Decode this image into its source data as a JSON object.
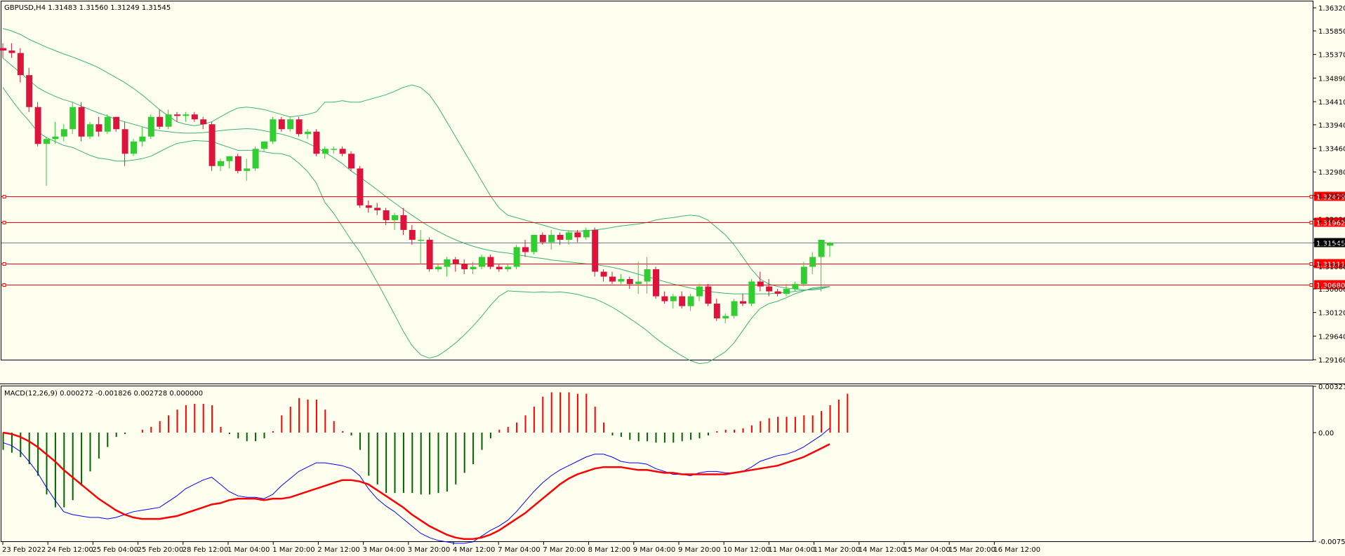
{
  "header": {
    "symbol_line": "GBPUSD,H4  1.31483 1.31560 1.31249 1.31545",
    "macd_line": "MACD(12,26,9) 0.000272 -0.001826 0.002728 0.000000"
  },
  "colors": {
    "background": "#fffff0",
    "bull": "#32cd32",
    "bear": "#dc143c",
    "bands": "#3cb371",
    "hline": "#ff0000",
    "current": "#708090",
    "macd_main": "#0000ff",
    "macd_signal": "#ff0000",
    "hist_pos": "#ff0000",
    "hist_neg": "#006400"
  },
  "chart_data": [
    {
      "type": "candlestick",
      "symbol": "GBPUSD",
      "timeframe": "H4",
      "ylim": [
        1.2916,
        1.3645
      ],
      "y_ticks": [
        "1.36320",
        "1.35850",
        "1.35370",
        "1.34890",
        "1.34410",
        "1.33940",
        "1.33460",
        "1.32980",
        "1.32500",
        "1.32020",
        "1.31540",
        "1.31060",
        "1.30600",
        "1.30120",
        "1.29640",
        "1.29160"
      ],
      "x_ticks": [
        "23 Feb 2022",
        "24 Feb 12:00",
        "25 Feb 04:00",
        "25 Feb 20:00",
        "28 Feb 12:00",
        "1 Mar 04:00",
        "1 Mar 20:00",
        "2 Mar 12:00",
        "3 Mar 04:00",
        "3 Mar 20:00",
        "4 Mar 12:00",
        "7 Mar 04:00",
        "7 Mar 20:00",
        "8 Mar 12:00",
        "9 Mar 04:00",
        "9 Mar 20:00",
        "10 Mar 12:00",
        "11 Mar 04:00",
        "11 Mar 20:00",
        "14 Mar 12:00",
        "15 Mar 04:00",
        "15 Mar 20:00",
        "16 Mar 12:00"
      ],
      "candles": [
        [
          1.355,
          1.356,
          1.353,
          1.3545
        ],
        [
          1.3545,
          1.356,
          1.353,
          1.354
        ],
        [
          1.354,
          1.355,
          1.348,
          1.3495
        ],
        [
          1.3495,
          1.351,
          1.342,
          1.343
        ],
        [
          1.343,
          1.344,
          1.335,
          1.3355
        ],
        [
          1.3355,
          1.337,
          1.327,
          1.3365
        ],
        [
          1.3365,
          1.34,
          1.3355,
          1.337
        ],
        [
          1.337,
          1.3395,
          1.336,
          1.3385
        ],
        [
          1.3385,
          1.344,
          1.3375,
          1.343
        ],
        [
          1.343,
          1.344,
          1.336,
          1.337
        ],
        [
          1.337,
          1.34,
          1.3365,
          1.3395
        ],
        [
          1.3395,
          1.341,
          1.337,
          1.338
        ],
        [
          1.338,
          1.3415,
          1.3375,
          1.341
        ],
        [
          1.341,
          1.341,
          1.338,
          1.3385
        ],
        [
          1.3385,
          1.34,
          1.331,
          1.3335
        ],
        [
          1.3335,
          1.3365,
          1.333,
          1.336
        ],
        [
          1.336,
          1.339,
          1.335,
          1.337
        ],
        [
          1.337,
          1.3415,
          1.3365,
          1.341
        ],
        [
          1.341,
          1.3425,
          1.3385,
          1.339
        ],
        [
          1.339,
          1.3425,
          1.3385,
          1.3415
        ],
        [
          1.3415,
          1.342,
          1.34,
          1.3412
        ],
        [
          1.3412,
          1.342,
          1.34,
          1.3415
        ],
        [
          1.3415,
          1.342,
          1.34,
          1.3405
        ],
        [
          1.3405,
          1.341,
          1.3385,
          1.3395
        ],
        [
          1.3395,
          1.34,
          1.33,
          1.331
        ],
        [
          1.331,
          1.3325,
          1.33,
          1.332
        ],
        [
          1.332,
          1.333,
          1.3305,
          1.333
        ],
        [
          1.333,
          1.3335,
          1.3295,
          1.33
        ],
        [
          1.33,
          1.3325,
          1.328,
          1.3305
        ],
        [
          1.3305,
          1.335,
          1.33,
          1.3345
        ],
        [
          1.3345,
          1.336,
          1.334,
          1.336
        ],
        [
          1.336,
          1.341,
          1.3355,
          1.3405
        ],
        [
          1.3405,
          1.341,
          1.338,
          1.3385
        ],
        [
          1.3385,
          1.341,
          1.338,
          1.3405
        ],
        [
          1.3405,
          1.341,
          1.337,
          1.3375
        ],
        [
          1.3375,
          1.3385,
          1.3365,
          1.338
        ],
        [
          1.338,
          1.3385,
          1.333,
          1.3335
        ],
        [
          1.3335,
          1.335,
          1.3325,
          1.3345
        ],
        [
          1.3345,
          1.335,
          1.3335,
          1.3345
        ],
        [
          1.3345,
          1.335,
          1.333,
          1.3335
        ],
        [
          1.3335,
          1.334,
          1.33,
          1.3305
        ],
        [
          1.3305,
          1.331,
          1.3225,
          1.323
        ],
        [
          1.323,
          1.324,
          1.3215,
          1.3225
        ],
        [
          1.3225,
          1.3235,
          1.321,
          1.322
        ],
        [
          1.322,
          1.3225,
          1.319,
          1.32
        ],
        [
          1.32,
          1.3215,
          1.318,
          1.321
        ],
        [
          1.321,
          1.3225,
          1.317,
          1.318
        ],
        [
          1.318,
          1.319,
          1.315,
          1.316
        ],
        [
          1.316,
          1.318,
          1.311,
          1.316
        ],
        [
          1.316,
          1.3165,
          1.3095,
          1.31
        ],
        [
          1.31,
          1.311,
          1.3095,
          1.3105
        ],
        [
          1.3105,
          1.3125,
          1.3085,
          1.312
        ],
        [
          1.312,
          1.3125,
          1.3095,
          1.311
        ],
        [
          1.311,
          1.312,
          1.309,
          1.31
        ],
        [
          1.31,
          1.3115,
          1.309,
          1.3105
        ],
        [
          1.3105,
          1.313,
          1.31,
          1.3125
        ],
        [
          1.3125,
          1.313,
          1.31,
          1.3105
        ],
        [
          1.3105,
          1.311,
          1.3095,
          1.31
        ],
        [
          1.31,
          1.311,
          1.3095,
          1.3105
        ],
        [
          1.3105,
          1.315,
          1.31,
          1.3145
        ],
        [
          1.3145,
          1.316,
          1.3125,
          1.3135
        ],
        [
          1.3135,
          1.317,
          1.313,
          1.317
        ],
        [
          1.317,
          1.3175,
          1.315,
          1.3155
        ],
        [
          1.3155,
          1.318,
          1.314,
          1.317
        ],
        [
          1.317,
          1.3175,
          1.315,
          1.316
        ],
        [
          1.316,
          1.318,
          1.315,
          1.3175
        ],
        [
          1.3175,
          1.318,
          1.3155,
          1.3165
        ],
        [
          1.3165,
          1.3185,
          1.316,
          1.318
        ],
        [
          1.318,
          1.3185,
          1.3085,
          1.3095
        ],
        [
          1.3095,
          1.31,
          1.3075,
          1.3085
        ],
        [
          1.3085,
          1.3095,
          1.307,
          1.3075
        ],
        [
          1.3075,
          1.309,
          1.307,
          1.308
        ],
        [
          1.308,
          1.3085,
          1.306,
          1.307
        ],
        [
          1.307,
          1.3115,
          1.305,
          1.3075
        ],
        [
          1.3075,
          1.3125,
          1.305,
          1.31
        ],
        [
          1.31,
          1.3105,
          1.304,
          1.3045
        ],
        [
          1.3045,
          1.3055,
          1.303,
          1.3035
        ],
        [
          1.3035,
          1.305,
          1.302,
          1.3045
        ],
        [
          1.3045,
          1.3055,
          1.302,
          1.3025
        ],
        [
          1.3025,
          1.305,
          1.3015,
          1.3045
        ],
        [
          1.3045,
          1.307,
          1.3035,
          1.3065
        ],
        [
          1.3065,
          1.307,
          1.3025,
          1.303
        ],
        [
          1.303,
          1.304,
          1.2995,
          1.3
        ],
        [
          1.3,
          1.301,
          1.299,
          1.3005
        ],
        [
          1.3005,
          1.304,
          1.3,
          1.3035
        ],
        [
          1.3035,
          1.305,
          1.3025,
          1.303
        ],
        [
          1.303,
          1.308,
          1.3025,
          1.3075
        ],
        [
          1.3075,
          1.3095,
          1.3055,
          1.3065
        ],
        [
          1.3065,
          1.308,
          1.3045,
          1.3055
        ],
        [
          1.3055,
          1.306,
          1.3045,
          1.305
        ],
        [
          1.305,
          1.307,
          1.3045,
          1.306
        ],
        [
          1.306,
          1.3075,
          1.3055,
          1.307
        ],
        [
          1.307,
          1.3115,
          1.3065,
          1.3105
        ],
        [
          1.3105,
          1.3135,
          1.309,
          1.3125
        ],
        [
          1.3125,
          1.316,
          1.3055,
          1.316
        ],
        [
          1.3148,
          1.3156,
          1.3125,
          1.3154
        ]
      ],
      "bands_upper": [
        1.359,
        1.3585,
        1.3578,
        1.3568,
        1.356,
        1.3552,
        1.3545,
        1.3538,
        1.3532,
        1.3525,
        1.3518,
        1.351,
        1.35,
        1.349,
        1.348,
        1.3468,
        1.3455,
        1.344,
        1.3425,
        1.3412,
        1.34,
        1.3395,
        1.3392,
        1.3395,
        1.34,
        1.341,
        1.342,
        1.3428,
        1.343,
        1.3428,
        1.3425,
        1.342,
        1.3415,
        1.341,
        1.3412,
        1.3415,
        1.342,
        1.344,
        1.344,
        1.3443,
        1.344,
        1.344,
        1.3445,
        1.345,
        1.3455,
        1.3462,
        1.347,
        1.3475,
        1.347,
        1.3455,
        1.343,
        1.34,
        1.337,
        1.334,
        1.331,
        1.328,
        1.325,
        1.3225,
        1.321,
        1.3205,
        1.32,
        1.3195,
        1.319,
        1.3185,
        1.318,
        1.3178,
        1.3177,
        1.3178,
        1.318,
        1.3182,
        1.3185,
        1.3188,
        1.319,
        1.3192,
        1.3195,
        1.32,
        1.3203,
        1.3205,
        1.3208,
        1.321,
        1.3208,
        1.32,
        1.3185,
        1.317,
        1.315,
        1.3125,
        1.31,
        1.308,
        1.307,
        1.3065,
        1.3062,
        1.306,
        1.3058,
        1.3058,
        1.306,
        1.3065
      ],
      "bands_middle": [
        1.353,
        1.3515,
        1.35,
        1.3485,
        1.347,
        1.346,
        1.3452,
        1.3445,
        1.344,
        1.3432,
        1.3425,
        1.3418,
        1.3412,
        1.3405,
        1.34,
        1.3395,
        1.339,
        1.3385,
        1.3382,
        1.338,
        1.3378,
        1.3377,
        1.3377,
        1.3378,
        1.338,
        1.3382,
        1.3384,
        1.3385,
        1.3386,
        1.3385,
        1.3382,
        1.3378,
        1.3375,
        1.337,
        1.3364,
        1.3357,
        1.3348,
        1.3338,
        1.3327,
        1.3315,
        1.33,
        1.3288,
        1.3275,
        1.3262,
        1.3248,
        1.3235,
        1.3222,
        1.321,
        1.3198,
        1.3187,
        1.3177,
        1.3168,
        1.316,
        1.3153,
        1.3147,
        1.3142,
        1.3138,
        1.3135,
        1.3133,
        1.313,
        1.3127,
        1.3124,
        1.3122,
        1.3119,
        1.3117,
        1.3115,
        1.3113,
        1.3111,
        1.311,
        1.3107,
        1.3104,
        1.31,
        1.3095,
        1.309,
        1.3085,
        1.308,
        1.3075,
        1.307,
        1.3066,
        1.3062,
        1.3058,
        1.3055,
        1.3053,
        1.3051,
        1.305,
        1.305,
        1.305,
        1.305,
        1.305,
        1.3052,
        1.3053,
        1.3055,
        1.3057,
        1.306,
        1.3062,
        1.3065
      ],
      "bands_lower": [
        1.347,
        1.3445,
        1.3422,
        1.3402,
        1.338,
        1.3368,
        1.336,
        1.3352,
        1.3348,
        1.334,
        1.3332,
        1.3326,
        1.3324,
        1.332,
        1.332,
        1.3322,
        1.3325,
        1.333,
        1.3339,
        1.3348,
        1.3356,
        1.3359,
        1.3362,
        1.3361,
        1.336,
        1.3354,
        1.3348,
        1.3342,
        1.3342,
        1.3342,
        1.3339,
        1.3336,
        1.3335,
        1.333,
        1.3316,
        1.3299,
        1.3276,
        1.3236,
        1.3214,
        1.3187,
        1.316,
        1.3136,
        1.3105,
        1.3074,
        1.3041,
        1.3008,
        1.2974,
        1.2945,
        1.2926,
        1.2919,
        1.2924,
        1.2936,
        1.295,
        1.2966,
        1.2984,
        1.3004,
        1.3026,
        1.3045,
        1.3056,
        1.3055,
        1.3054,
        1.3053,
        1.3054,
        1.3053,
        1.3054,
        1.3052,
        1.3049,
        1.3044,
        1.304,
        1.3032,
        1.3023,
        1.3012,
        1.3,
        1.2988,
        1.2975,
        1.296,
        1.2947,
        1.2935,
        1.2924,
        1.2914,
        1.2908,
        1.291,
        1.2921,
        1.2932,
        1.295,
        1.2975,
        1.3,
        1.302,
        1.303,
        1.3035,
        1.3042,
        1.305,
        1.3056,
        1.3062,
        1.3064,
        1.3065
      ],
      "horizontal_levels": [
        "1.32479",
        "1.31962",
        "1.31111",
        "1.30680"
      ],
      "current_price": "1.31545"
    },
    {
      "type": "macd",
      "ylim": [
        -0.007557,
        0.003217
      ],
      "y_ticks": [
        "0.003217",
        "0.00",
        "-0.007557"
      ],
      "histogram": [
        -0.0012,
        -0.0014,
        -0.0017,
        -0.0022,
        -0.003,
        -0.0043,
        -0.0052,
        -0.0052,
        -0.0047,
        -0.0037,
        -0.0027,
        -0.0018,
        -0.001,
        -0.0003,
        -0.0001,
        0.0,
        0.0002,
        0.0004,
        0.0008,
        0.0012,
        0.0016,
        0.0019,
        0.002,
        0.002,
        0.0019,
        0.0004,
        -0.0001,
        -0.0004,
        -0.0006,
        -0.0006,
        -0.0004,
        0.0001,
        0.0012,
        0.0018,
        0.0024,
        0.0023,
        0.0023,
        0.0016,
        0.0008,
        0.0001,
        -0.0002,
        -0.0012,
        -0.003,
        -0.0036,
        -0.0042,
        -0.0042,
        -0.0042,
        -0.0042,
        -0.0043,
        -0.0043,
        -0.0042,
        -0.0041,
        -0.0036,
        -0.0028,
        -0.0022,
        -0.0012,
        -0.0004,
        0.0002,
        0.0004,
        0.0007,
        0.0012,
        0.0018,
        0.0025,
        0.0028,
        0.0028,
        0.0028,
        0.0027,
        0.0027,
        0.0018,
        0.0007,
        -0.0002,
        -0.0003,
        -0.0005,
        -0.0006,
        -0.0006,
        -0.0007,
        -0.0007,
        -0.0007,
        -0.0006,
        -0.0005,
        -0.0004,
        -0.0002,
        0.0001,
        0.0002,
        0.0002,
        0.0003,
        0.0005,
        0.0008,
        0.001,
        0.0011,
        0.0011,
        0.0011,
        0.0012,
        0.0012,
        0.0015,
        0.0019,
        0.0023,
        0.0027
      ],
      "main": [
        -0.0007,
        -0.0009,
        -0.0013,
        -0.002,
        -0.0028,
        -0.0038,
        -0.0047,
        -0.0055,
        -0.0057,
        -0.0058,
        -0.0059,
        -0.0059,
        -0.006,
        -0.0059,
        -0.0057,
        -0.0055,
        -0.0054,
        -0.0053,
        -0.0052,
        -0.0048,
        -0.0044,
        -0.0039,
        -0.0036,
        -0.0033,
        -0.0031,
        -0.0036,
        -0.0041,
        -0.0044,
        -0.0045,
        -0.0045,
        -0.0046,
        -0.0043,
        -0.0037,
        -0.0032,
        -0.0027,
        -0.0024,
        -0.0021,
        -0.0021,
        -0.0022,
        -0.0023,
        -0.0025,
        -0.003,
        -0.0039,
        -0.0046,
        -0.0051,
        -0.0055,
        -0.006,
        -0.0065,
        -0.007,
        -0.0073,
        -0.0075,
        -0.0076,
        -0.0077,
        -0.0077,
        -0.0076,
        -0.0072,
        -0.0068,
        -0.0065,
        -0.0061,
        -0.0055,
        -0.0048,
        -0.0041,
        -0.0035,
        -0.003,
        -0.0026,
        -0.0023,
        -0.002,
        -0.0017,
        -0.0015,
        -0.0015,
        -0.0017,
        -0.002,
        -0.0021,
        -0.0021,
        -0.0022,
        -0.0025,
        -0.0027,
        -0.0029,
        -0.0029,
        -0.003,
        -0.0028,
        -0.0027,
        -0.0027,
        -0.0028,
        -0.0028,
        -0.0027,
        -0.0024,
        -0.002,
        -0.0018,
        -0.0016,
        -0.0015,
        -0.0013,
        -0.001,
        -0.0006,
        -0.0002,
        0.0003
      ],
      "signal": [
        0.0,
        -0.0001,
        -0.0003,
        -0.0006,
        -0.001,
        -0.0015,
        -0.002,
        -0.0026,
        -0.0031,
        -0.0036,
        -0.0041,
        -0.0046,
        -0.005,
        -0.0054,
        -0.0057,
        -0.0059,
        -0.006,
        -0.006,
        -0.006,
        -0.0059,
        -0.0058,
        -0.0056,
        -0.0054,
        -0.0052,
        -0.005,
        -0.0049,
        -0.0047,
        -0.0046,
        -0.0046,
        -0.0046,
        -0.0047,
        -0.0046,
        -0.0046,
        -0.0045,
        -0.0043,
        -0.0041,
        -0.0039,
        -0.0037,
        -0.0035,
        -0.0033,
        -0.0033,
        -0.0034,
        -0.0036,
        -0.004,
        -0.0044,
        -0.0048,
        -0.0052,
        -0.0057,
        -0.0061,
        -0.0065,
        -0.0068,
        -0.0071,
        -0.0073,
        -0.0074,
        -0.0074,
        -0.0073,
        -0.0071,
        -0.0068,
        -0.0064,
        -0.006,
        -0.0056,
        -0.0051,
        -0.0046,
        -0.0041,
        -0.0036,
        -0.0032,
        -0.0029,
        -0.0027,
        -0.0025,
        -0.0024,
        -0.0024,
        -0.0024,
        -0.0025,
        -0.0026,
        -0.0026,
        -0.0027,
        -0.0028,
        -0.0028,
        -0.0029,
        -0.0029,
        -0.0029,
        -0.0029,
        -0.0029,
        -0.0029,
        -0.0028,
        -0.0027,
        -0.0026,
        -0.0025,
        -0.0024,
        -0.0023,
        -0.0021,
        -0.0019,
        -0.0017,
        -0.0014,
        -0.0011,
        -0.0008
      ]
    }
  ]
}
